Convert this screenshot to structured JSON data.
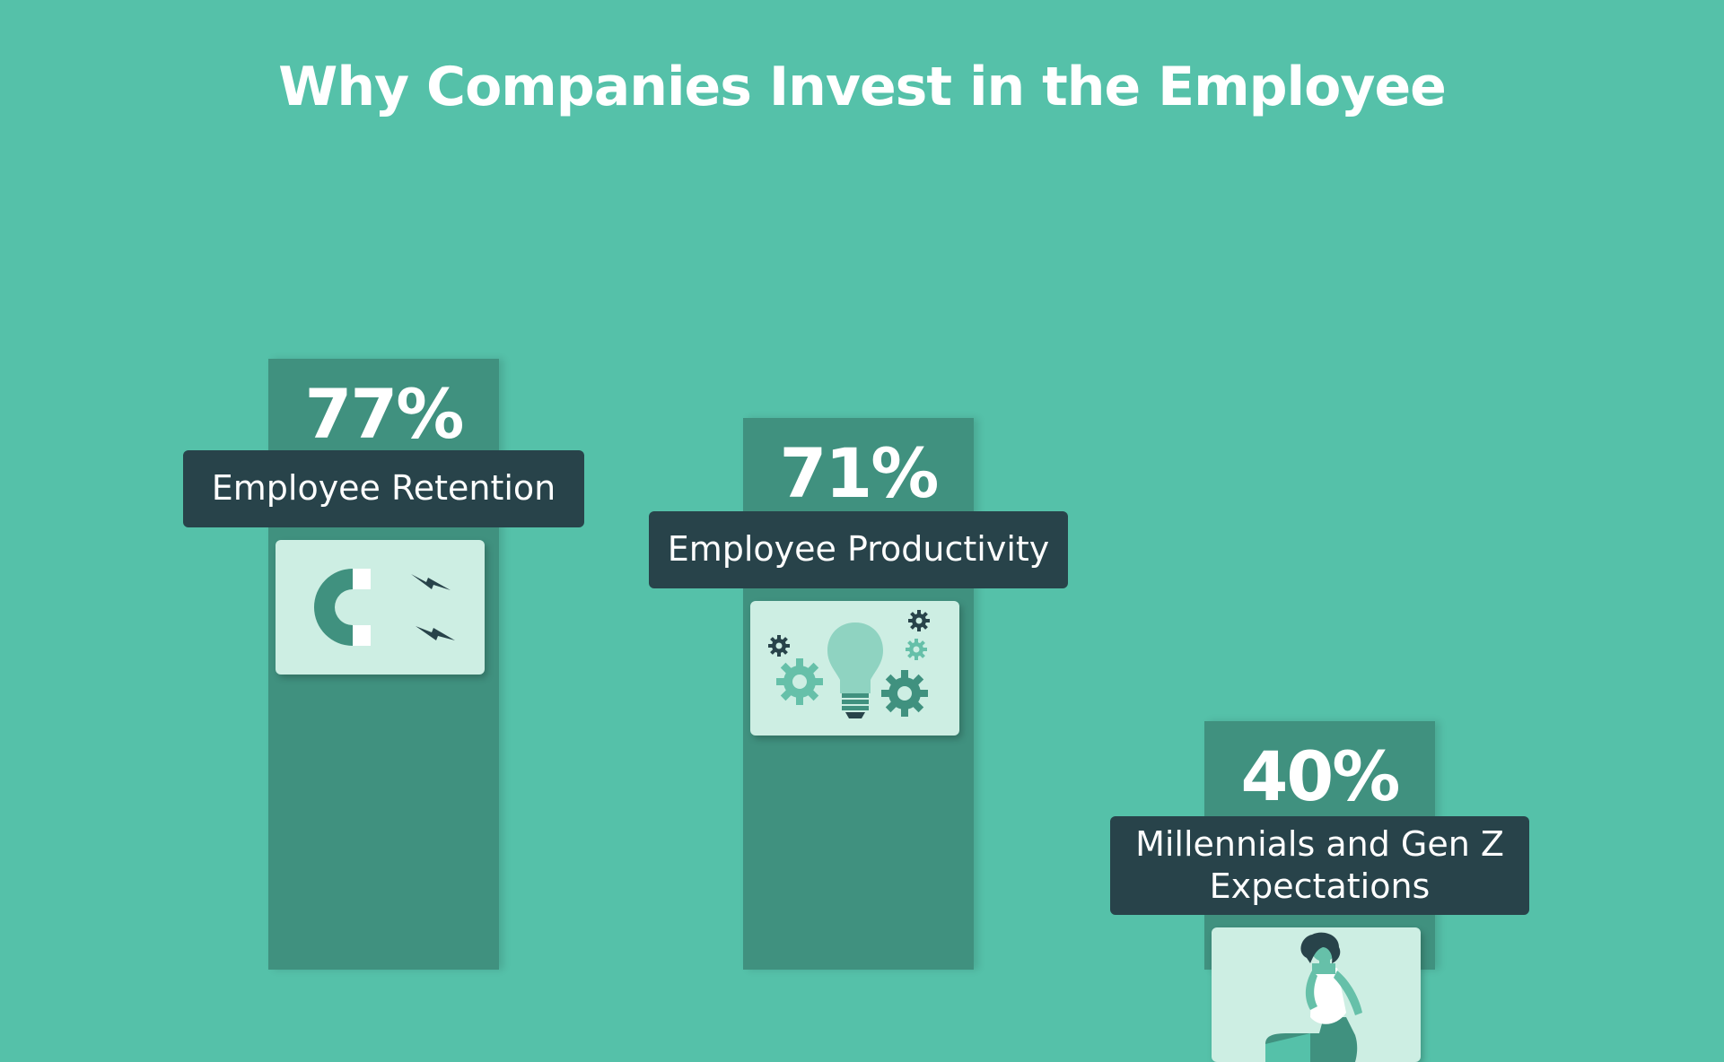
{
  "title": "Why Companies Invest in the Employee",
  "colors": {
    "background": "#55c1a9",
    "bar": "#40917f",
    "label_box": "#28434a",
    "card": "#cdeee3",
    "text": "#ffffff"
  },
  "chart_data": {
    "type": "bar",
    "title": "Why Companies Invest in the Employee",
    "categories": [
      "Employee Retention",
      "Employee Productivity",
      "Millennials and Gen Z Expectations"
    ],
    "values": [
      77,
      71,
      40
    ],
    "value_labels": [
      "77%",
      "71%",
      "40%"
    ],
    "icons": [
      "magnet-icon",
      "lightbulb-gears-icon",
      "person-sitting-icon"
    ],
    "xlabel": "",
    "ylabel": "",
    "grid": false,
    "legend": "none"
  }
}
